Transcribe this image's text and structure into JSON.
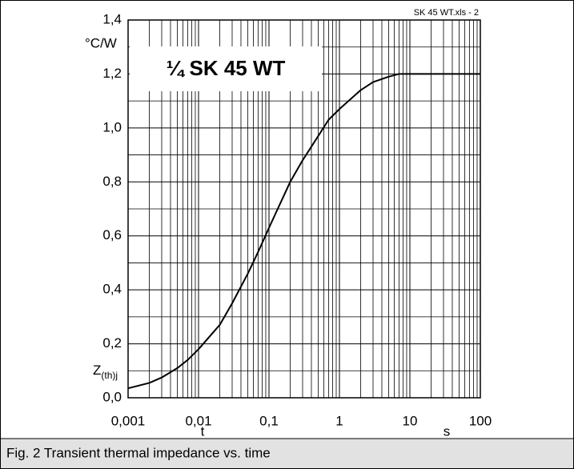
{
  "chart_data": {
    "type": "line",
    "title": "¼ SK 45 WT",
    "file_label": "SK 45 WT.xls - 2",
    "caption": "Fig. 2 Transient thermal impedance vs. time",
    "x_label": "t",
    "x_unit": "s",
    "y_label": {
      "main": "Z",
      "sub": "(th)j"
    },
    "y_unit": "°C/W",
    "log_x": true,
    "grid": true,
    "color": "#000000",
    "x": [
      0.001,
      0.002,
      0.003,
      0.005,
      0.007,
      0.01,
      0.02,
      0.03,
      0.05,
      0.07,
      0.1,
      0.2,
      0.3,
      0.5,
      0.7,
      1,
      2,
      3,
      5,
      7,
      10,
      100
    ],
    "values": [
      0.035,
      0.055,
      0.075,
      0.11,
      0.14,
      0.18,
      0.27,
      0.35,
      0.46,
      0.54,
      0.63,
      0.8,
      0.88,
      0.97,
      1.03,
      1.07,
      1.14,
      1.17,
      1.19,
      1.2,
      1.2,
      1.2
    ],
    "xlim": [
      0.001,
      100
    ],
    "ylim": [
      0,
      1.4
    ],
    "xticks": [
      {
        "value": 0.001,
        "label": "0,001"
      },
      {
        "value": 0.01,
        "label": "0,01"
      },
      {
        "value": 0.1,
        "label": "0,1"
      },
      1,
      10,
      100
    ],
    "x_minor_ticks": [
      0.002,
      0.003,
      0.004,
      0.005,
      0.006,
      0.007,
      0.008,
      0.009,
      0.02,
      0.03,
      0.04,
      0.05,
      0.06,
      0.07,
      0.08,
      0.09,
      0.2,
      0.3,
      0.4,
      0.5,
      0.6,
      0.7,
      0.8,
      0.9,
      2,
      3,
      4,
      5,
      6,
      7,
      8,
      9,
      20,
      30,
      40,
      50,
      60,
      70,
      80,
      90
    ],
    "yticks": [
      {
        "value": 0,
        "label": "0,0"
      },
      {
        "value": 0.2,
        "label": "0,2"
      },
      {
        "value": 0.4,
        "label": "0,4"
      },
      {
        "value": 0.6,
        "label": "0,6"
      },
      {
        "value": 0.8,
        "label": "0,8"
      },
      {
        "value": 1.0,
        "label": "1,0"
      },
      {
        "value": 1.2,
        "label": "1,2"
      },
      {
        "value": 1.4,
        "label": "1,4"
      }
    ],
    "y_minor_ticks": [
      0.1,
      0.3,
      0.5,
      0.7,
      0.9,
      1.1,
      1.3
    ]
  }
}
